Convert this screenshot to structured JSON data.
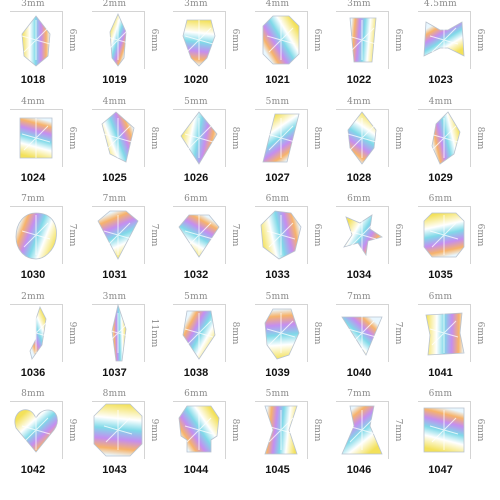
{
  "items": [
    {
      "code": "1018",
      "width": "3mm",
      "height": "6mm",
      "shape": "teardrop"
    },
    {
      "code": "1019",
      "width": "2mm",
      "height": "6mm",
      "shape": "teardrop-thin"
    },
    {
      "code": "1020",
      "width": "3mm",
      "height": "6mm",
      "shape": "shield"
    },
    {
      "code": "1021",
      "width": "4mm",
      "height": "6mm",
      "shape": "octagon"
    },
    {
      "code": "1022",
      "width": "3mm",
      "height": "6mm",
      "shape": "trapezoid"
    },
    {
      "code": "1023",
      "width": "4.5mm",
      "height": "6mm",
      "shape": "bow"
    },
    {
      "code": "1024",
      "width": "4mm",
      "height": "6mm",
      "shape": "rectangle"
    },
    {
      "code": "1025",
      "width": "4mm",
      "height": "8mm",
      "shape": "kite"
    },
    {
      "code": "1026",
      "width": "5mm",
      "height": "8mm",
      "shape": "rhombus"
    },
    {
      "code": "1027",
      "width": "5mm",
      "height": "8mm",
      "shape": "parallelogram"
    },
    {
      "code": "1028",
      "width": "4mm",
      "height": "8mm",
      "shape": "marquise"
    },
    {
      "code": "1029",
      "width": "4mm",
      "height": "8mm",
      "shape": "leaf"
    },
    {
      "code": "1030",
      "width": "7mm",
      "height": "7mm",
      "shape": "heart-round"
    },
    {
      "code": "1031",
      "width": "7mm",
      "height": "7mm",
      "shape": "trillion"
    },
    {
      "code": "1032",
      "width": "6mm",
      "height": "7mm",
      "shape": "diamond"
    },
    {
      "code": "1033",
      "width": "6mm",
      "height": "6mm",
      "shape": "blob"
    },
    {
      "code": "1034",
      "width": "6mm",
      "height": "6mm",
      "shape": "star"
    },
    {
      "code": "1035",
      "width": "6mm",
      "height": "6mm",
      "shape": "cushion"
    },
    {
      "code": "1036",
      "width": "2mm",
      "height": "9mm",
      "shape": "crescent"
    },
    {
      "code": "1037",
      "width": "3mm",
      "height": "11mm",
      "shape": "spike"
    },
    {
      "code": "1038",
      "width": "5mm",
      "height": "8mm",
      "shape": "pentagon"
    },
    {
      "code": "1039",
      "width": "5mm",
      "height": "8mm",
      "shape": "drop"
    },
    {
      "code": "1040",
      "width": "7mm",
      "height": "7mm",
      "shape": "triangle"
    },
    {
      "code": "1041",
      "width": "6mm",
      "height": "6mm",
      "shape": "square-wave"
    },
    {
      "code": "1042",
      "width": "8mm",
      "height": "9mm",
      "shape": "heart"
    },
    {
      "code": "1043",
      "width": "8mm",
      "height": "9mm",
      "shape": "cushion-large"
    },
    {
      "code": "1044",
      "width": "6mm",
      "height": "8mm",
      "shape": "skull"
    },
    {
      "code": "1045",
      "width": "5mm",
      "height": "8mm",
      "shape": "hourglass"
    },
    {
      "code": "1046",
      "width": "7mm",
      "height": "7mm",
      "shape": "bell"
    },
    {
      "code": "1047",
      "width": "6mm",
      "height": "6mm",
      "shape": "square"
    }
  ]
}
